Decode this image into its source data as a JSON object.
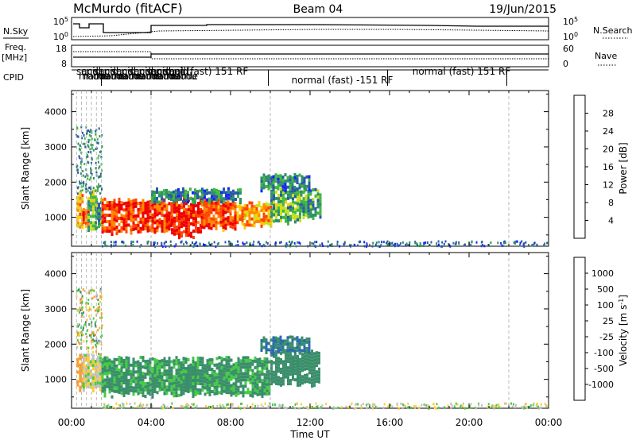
{
  "header": {
    "station": "McMurdo (fitACF)",
    "beam": "Beam 04",
    "date": "19/Jun/2015"
  },
  "panel_labels": {
    "nsky": "N.Sky",
    "nsearch": "N.Search",
    "freq": "Freq.",
    "freq_unit": "[MHz]",
    "nave": "Nave",
    "cpid": "CPID",
    "nsky_hi": "10^5",
    "nsky_lo": "10^0",
    "nsearch_hi": "10^5",
    "nsearch_lo": "10^0",
    "freq_hi": "18",
    "freq_lo": "8",
    "nave_hi": "60",
    "nave_lo": "0"
  },
  "cpid_segments": [
    {
      "label": "normal (fast) 151 RF",
      "start_h": 1.5,
      "end_h": 9.9
    },
    {
      "label": "normal (fast) -151 RF",
      "start_h": 9.9,
      "end_h": 15.9
    },
    {
      "label": "normal (fast) 151 RF",
      "start_h": 15.9,
      "end_h": 21.9
    }
  ],
  "cpid_clutter": [
    "sacd",
    "mamu",
    "cpid",
    "mode"
  ],
  "chart_data": [
    {
      "type": "heatmap",
      "panel": "power",
      "ylabel": "Slant Range [km]",
      "xlabel": "Time UT",
      "xlim": [
        0,
        24
      ],
      "ylim": [
        180,
        4600
      ],
      "yticks": [
        1000,
        2000,
        3000,
        4000
      ],
      "xticks": [
        "00:00",
        "04:00",
        "08:00",
        "12:00",
        "16:00",
        "20:00",
        "00:00"
      ],
      "colorbar": {
        "label": "Power [dB]",
        "ticks": [
          4,
          8,
          12,
          16,
          20,
          24,
          28
        ],
        "range": [
          0,
          32
        ],
        "colors": [
          "#1a24ff",
          "#2a5aa8",
          "#2f8f6a",
          "#3fb83f",
          "#c8e020",
          "#ffcc00",
          "#ff8800",
          "#ff4400",
          "#ee0000"
        ]
      },
      "regions": [
        {
          "t0": 0.25,
          "t1": 0.55,
          "r0": 700,
          "r1": 1700,
          "level": 22
        },
        {
          "t0": 0.55,
          "t1": 0.8,
          "r0": 800,
          "r1": 1300,
          "level": 26
        },
        {
          "t0": 0.8,
          "t1": 1.2,
          "r0": 700,
          "r1": 1800,
          "level": 14
        },
        {
          "t0": 1.2,
          "t1": 1.5,
          "r0": 700,
          "r1": 1500,
          "level": 10
        },
        {
          "t0": 1.5,
          "t1": 5.0,
          "r0": 600,
          "r1": 1500,
          "level": 28
        },
        {
          "t0": 5.0,
          "t1": 6.5,
          "r0": 500,
          "r1": 1600,
          "level": 30
        },
        {
          "t0": 6.5,
          "t1": 8.3,
          "r0": 700,
          "r1": 1500,
          "level": 27
        },
        {
          "t0": 8.3,
          "t1": 10.0,
          "r0": 800,
          "r1": 1400,
          "level": 22
        },
        {
          "t0": 10.0,
          "t1": 11.5,
          "r0": 900,
          "r1": 1800,
          "level": 12
        },
        {
          "t0": 11.5,
          "t1": 12.5,
          "r0": 1000,
          "r1": 1800,
          "level": 10
        },
        {
          "t0": 4.0,
          "t1": 8.5,
          "r0": 1500,
          "r1": 1800,
          "level": 8
        },
        {
          "t0": 9.5,
          "t1": 12.0,
          "r0": 1800,
          "r1": 2200,
          "level": 8
        }
      ]
    },
    {
      "type": "heatmap",
      "panel": "velocity",
      "ylabel": "Slant Range [km]",
      "xlabel": "Time UT",
      "xlim": [
        0,
        24
      ],
      "ylim": [
        180,
        4600
      ],
      "yticks": [
        1000,
        2000,
        3000,
        4000
      ],
      "xticks": [
        "00:00",
        "04:00",
        "08:00",
        "12:00",
        "16:00",
        "20:00",
        "00:00"
      ],
      "colorbar": {
        "label": "Velocity [m s^-1]",
        "ticks": [
          "1000",
          "500",
          "100",
          "25",
          "-25",
          "-100",
          "-500",
          "-1000"
        ],
        "colors": [
          "#2040a0",
          "#2a6ab0",
          "#3a8f6a",
          "#44cc44",
          "#c0c0c0",
          "#ffcc33",
          "#ff9922",
          "#ff5511",
          "#ee0000"
        ]
      },
      "regions": [
        {
          "t0": 0.25,
          "t1": 0.55,
          "r0": 700,
          "r1": 1700,
          "level": -100
        },
        {
          "t0": 0.55,
          "t1": 1.5,
          "r0": 700,
          "r1": 1700,
          "level": 0
        },
        {
          "t0": 1.5,
          "t1": 10.0,
          "r0": 600,
          "r1": 1600,
          "level": 80
        },
        {
          "t0": 10.0,
          "t1": 12.5,
          "r0": 900,
          "r1": 1800,
          "level": 150
        },
        {
          "t0": 9.5,
          "t1": 12.0,
          "r0": 1800,
          "r1": 2200,
          "level": 300
        }
      ]
    }
  ]
}
